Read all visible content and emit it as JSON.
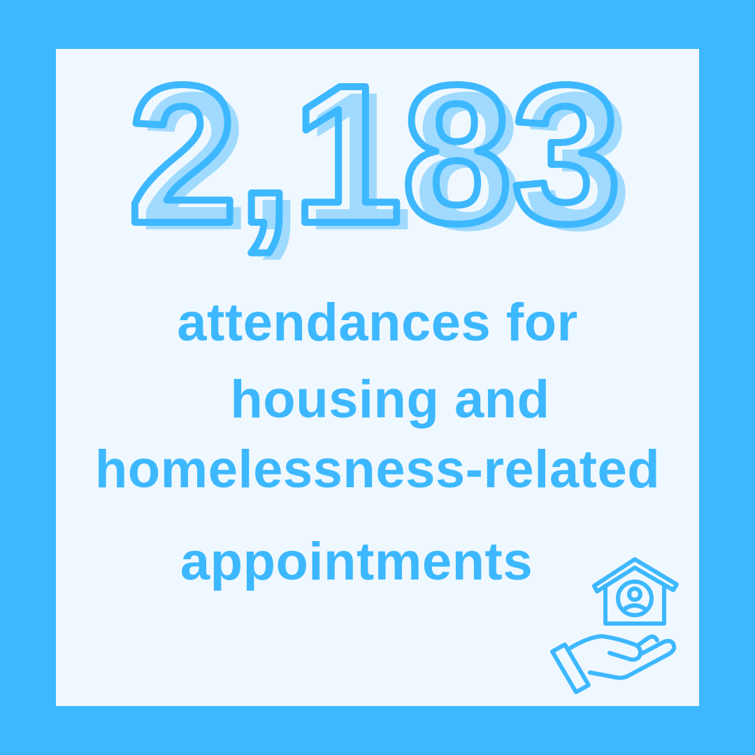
{
  "headline": {
    "number": "2,183"
  },
  "description": {
    "lines": [
      "attendances for",
      "housing and",
      "homelessness-related",
      "appointments"
    ]
  },
  "icon": "house-with-person-on-hand-icon",
  "colors": {
    "frame": "#3db8ff",
    "panel": "#eff8fe",
    "number_fill": "#a0dafe",
    "text": "#3db8ff"
  }
}
